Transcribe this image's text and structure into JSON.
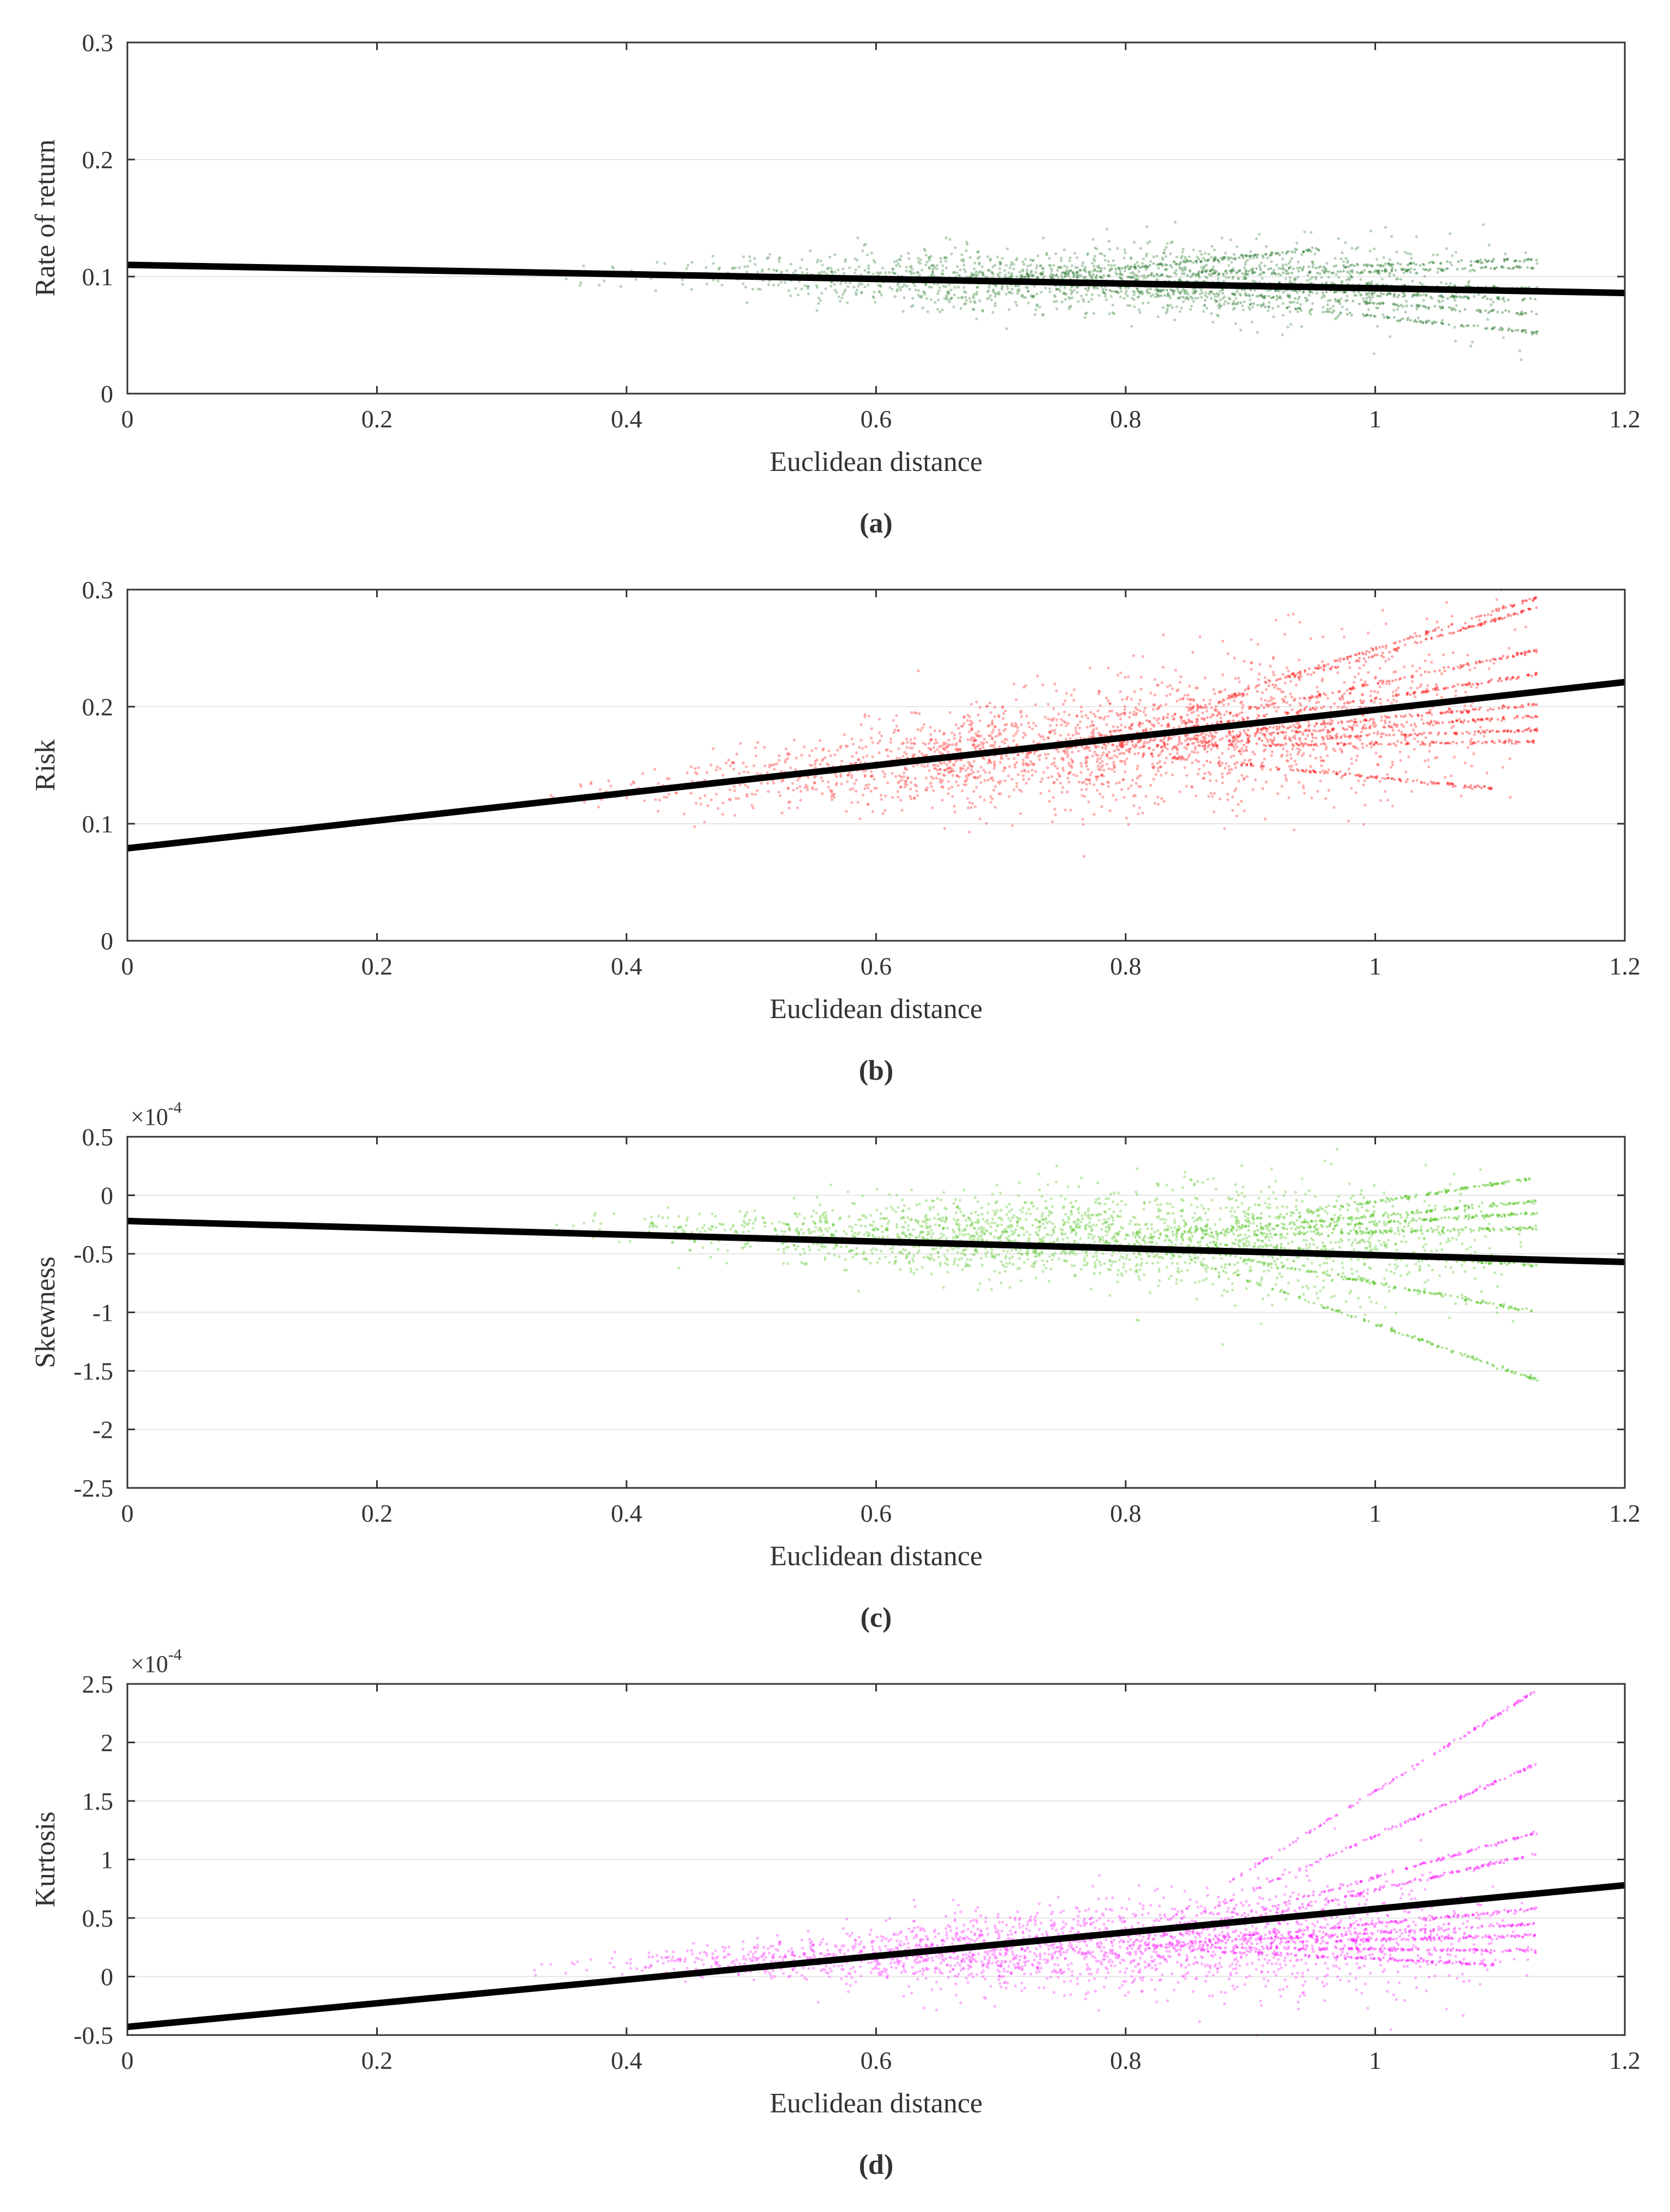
{
  "chart_data": [
    {
      "id": "a",
      "type": "scatter",
      "caption": "a",
      "xlabel": "Euclidean distance",
      "ylabel": "Rate of return",
      "multiplier": "",
      "xlim": [
        0,
        1.2
      ],
      "ylim": [
        0,
        0.3
      ],
      "xticks": [
        0,
        0.2,
        0.4,
        0.6,
        0.8,
        1,
        1.2
      ],
      "xtick_labels": [
        "0",
        "0.2",
        "0.4",
        "0.6",
        "0.8",
        "1",
        "1.2"
      ],
      "yticks": [
        0,
        0.1,
        0.2,
        0.3
      ],
      "ytick_labels": [
        "0",
        "0.1",
        "0.2",
        "0.3"
      ],
      "grid": true,
      "point_color": "#2e7d32",
      "fit_color": "#000000",
      "fit_line": {
        "x": [
          0,
          1.2
        ],
        "y": [
          0.11,
          0.086
        ]
      },
      "scatter": {
        "x_range": [
          0.3,
          1.13
        ],
        "center_start": 0.103,
        "center_end": 0.092,
        "spread_start": 0.005,
        "spread_end": 0.028,
        "count": 1600
      },
      "streaks": [
        {
          "x1": 0.7,
          "x2": 0.955,
          "y_end": 0.123
        },
        {
          "x1": 0.7,
          "x2": 1.13,
          "y_end": 0.115
        },
        {
          "x1": 0.7,
          "x2": 1.13,
          "y_end": 0.108
        },
        {
          "x1": 0.7,
          "x2": 1.13,
          "y_end": 0.09
        },
        {
          "x1": 0.7,
          "x2": 1.13,
          "y_end": 0.08
        },
        {
          "x1": 0.7,
          "x2": 1.13,
          "y_end": 0.068
        },
        {
          "x1": 0.7,
          "x2": 1.13,
          "y_end": 0.052
        }
      ]
    },
    {
      "id": "b",
      "type": "scatter",
      "caption": "b",
      "xlabel": "Euclidean distance",
      "ylabel": "Risk",
      "multiplier": "",
      "xlim": [
        0,
        1.2
      ],
      "ylim": [
        0,
        0.3
      ],
      "xticks": [
        0,
        0.2,
        0.4,
        0.6,
        0.8,
        1,
        1.2
      ],
      "xtick_labels": [
        "0",
        "0.2",
        "0.4",
        "0.6",
        "0.8",
        "1",
        "1.2"
      ],
      "yticks": [
        0,
        0.1,
        0.2,
        0.3
      ],
      "ytick_labels": [
        "0",
        "0.1",
        "0.2",
        "0.3"
      ],
      "grid": true,
      "point_color": "#ff1a1a",
      "fit_color": "#000000",
      "fit_line": {
        "x": [
          0,
          1.2
        ],
        "y": [
          0.079,
          0.221
        ]
      },
      "scatter": {
        "x_range": [
          0.3,
          1.13
        ],
        "center_start": 0.118,
        "center_end": 0.205,
        "spread_start": 0.008,
        "spread_end": 0.05,
        "count": 2200
      },
      "streaks": [
        {
          "x1": 0.75,
          "x2": 1.13,
          "y_end": 0.293
        },
        {
          "x1": 0.75,
          "x2": 1.13,
          "y_end": 0.285
        },
        {
          "x1": 0.75,
          "x2": 1.13,
          "y_end": 0.248
        },
        {
          "x1": 0.75,
          "x2": 1.13,
          "y_end": 0.228
        },
        {
          "x1": 0.75,
          "x2": 1.13,
          "y_end": 0.202
        },
        {
          "x1": 0.75,
          "x2": 1.13,
          "y_end": 0.192
        },
        {
          "x1": 0.75,
          "x2": 1.13,
          "y_end": 0.18
        },
        {
          "x1": 0.75,
          "x2": 1.13,
          "y_end": 0.17
        },
        {
          "x1": 0.75,
          "x2": 1.095,
          "y_end": 0.13
        }
      ]
    },
    {
      "id": "c",
      "type": "scatter",
      "caption": "c",
      "xlabel": "Euclidean distance",
      "ylabel": "Skewness",
      "multiplier": "×10",
      "multiplier_exponent": "-4",
      "xlim": [
        0,
        1.2
      ],
      "ylim": [
        -2.5,
        0.5
      ],
      "xticks": [
        0,
        0.2,
        0.4,
        0.6,
        0.8,
        1,
        1.2
      ],
      "xtick_labels": [
        "0",
        "0.2",
        "0.4",
        "0.6",
        "0.8",
        "1",
        "1.2"
      ],
      "yticks": [
        -2.5,
        -2,
        -1.5,
        -1,
        -0.5,
        0,
        0.5
      ],
      "ytick_labels": [
        "-2.5",
        "-2",
        "-1.5",
        "-1",
        "-0.5",
        "0",
        "0.5"
      ],
      "grid": true,
      "point_color": "#4dc41a",
      "fit_color": "#000000",
      "fit_line": {
        "x": [
          0,
          1.2
        ],
        "y": [
          -0.22,
          -0.57
        ]
      },
      "scatter": {
        "x_range": [
          0.28,
          1.13
        ],
        "center_start": -0.28,
        "center_end": -0.42,
        "spread_start": 0.05,
        "spread_end": 0.38,
        "count": 2200
      },
      "streaks": [
        {
          "x1": 0.8,
          "x2": 1.13,
          "y_end": 0.15
        },
        {
          "x1": 0.8,
          "x2": 1.13,
          "y_end": -0.05
        },
        {
          "x1": 0.8,
          "x2": 1.13,
          "y_end": -0.15
        },
        {
          "x1": 0.8,
          "x2": 1.13,
          "y_end": -0.28
        },
        {
          "x1": 0.8,
          "x2": 1.13,
          "y_end": -0.6
        },
        {
          "x1": 0.8,
          "x2": 1.13,
          "y_end": -1.0
        },
        {
          "x1": 0.8,
          "x2": 1.13,
          "y_end": -1.58
        }
      ]
    },
    {
      "id": "d",
      "type": "scatter",
      "caption": "d",
      "xlabel": "Euclidean distance",
      "ylabel": "Kurtosis",
      "multiplier": "×10",
      "multiplier_exponent": "-4",
      "xlim": [
        0,
        1.2
      ],
      "ylim": [
        -0.5,
        2.5
      ],
      "xticks": [
        0,
        0.2,
        0.4,
        0.6,
        0.8,
        1,
        1.2
      ],
      "xtick_labels": [
        "0",
        "0.2",
        "0.4",
        "0.6",
        "0.8",
        "1",
        "1.2"
      ],
      "yticks": [
        -0.5,
        0,
        0.5,
        1,
        1.5,
        2,
        2.5
      ],
      "ytick_labels": [
        "-0.5",
        "0",
        "0.5",
        "1",
        "1.5",
        "2",
        "2.5"
      ],
      "grid": true,
      "point_color": "#ff1aff",
      "fit_color": "#000000",
      "fit_line": {
        "x": [
          0,
          1.2
        ],
        "y": [
          -0.43,
          0.78
        ]
      },
      "scatter": {
        "x_range": [
          0.28,
          1.13
        ],
        "center_start": 0.06,
        "center_end": 0.38,
        "spread_start": 0.02,
        "spread_end": 0.38,
        "count": 2200
      },
      "streaks": [
        {
          "x1": 0.8,
          "x2": 1.13,
          "y_end": 2.45
        },
        {
          "x1": 0.8,
          "x2": 1.13,
          "y_end": 1.82
        },
        {
          "x1": 0.8,
          "x2": 1.13,
          "y_end": 1.23
        },
        {
          "x1": 0.8,
          "x2": 1.13,
          "y_end": 1.05
        },
        {
          "x1": 0.8,
          "x2": 1.13,
          "y_end": 0.58
        },
        {
          "x1": 0.8,
          "x2": 1.13,
          "y_end": 0.45
        },
        {
          "x1": 0.8,
          "x2": 1.13,
          "y_end": 0.35
        },
        {
          "x1": 0.8,
          "x2": 1.13,
          "y_end": 0.22
        },
        {
          "x1": 0.8,
          "x2": 1.095,
          "y_end": 0.1
        }
      ]
    }
  ]
}
